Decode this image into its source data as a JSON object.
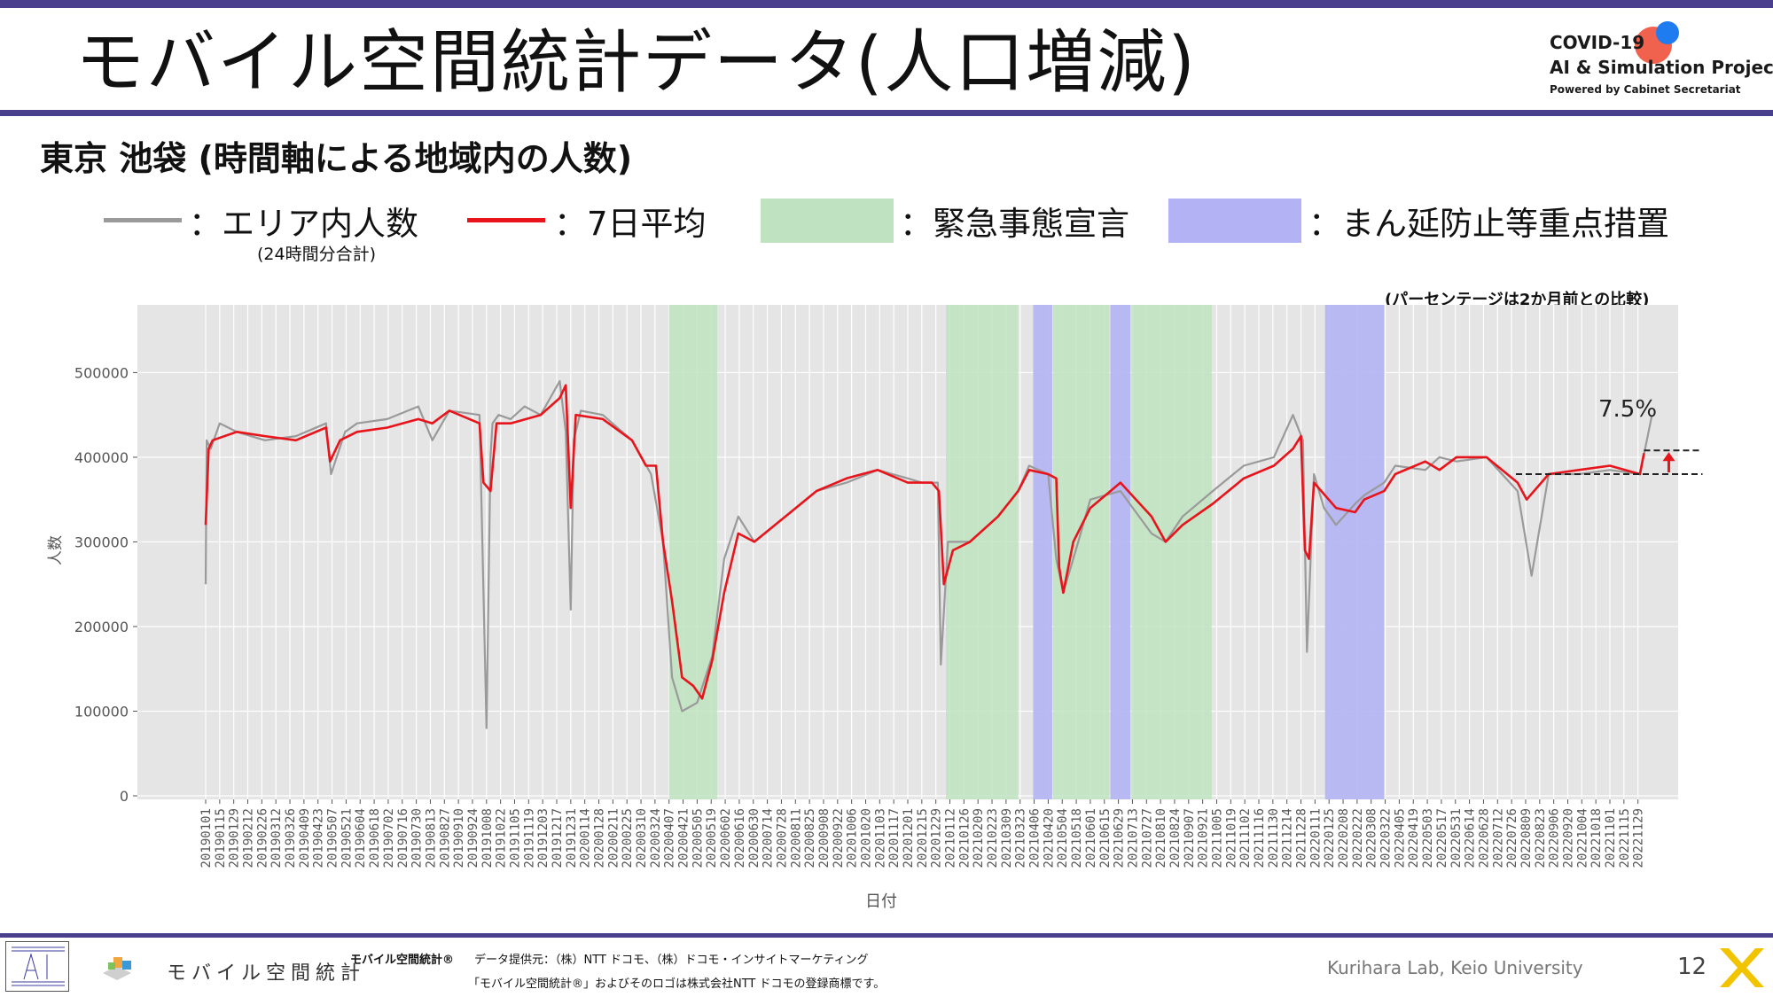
{
  "slide": {
    "title": "モバイル空間統計データ(人口増減)",
    "subtitle": "東京 池袋 (時間軸による地域内の人数)",
    "page_number": "12",
    "credit": "Kurihara Lab, Keio University"
  },
  "logo": {
    "line1": "COVID-19",
    "line2": "AI & Simulation Project",
    "line3": "Powered by Cabinet Secretariat"
  },
  "legend": {
    "area_count": "：エリア内人数",
    "area_count_sub": "(24時間分合計)",
    "avg7": "：7日平均",
    "emergency": "：緊急事態宣言",
    "priority": "：まん延防止等重点措置"
  },
  "note": "(パーセンテージは2か月前との比較)",
  "footer": {
    "brand": "モバイル空間統計",
    "brand_reg": "モバイル空間統計®",
    "provider": "データ提供元：（株）NTT ドコモ、（株）ドコモ・インサイトマーケティング",
    "trademark": "「モバイル空間統計®」およびそのロゴは株式会社NTT ドコモの登録商標です。"
  },
  "colors": {
    "accent": "#4a3f8c",
    "avg_line": "#e8141b",
    "daily_line": "#9a9a9a",
    "emergency": "#bfe3c0",
    "priority": "#b2b2f4",
    "plot_bg": "#e5e5e5"
  },
  "chart_data": {
    "type": "line",
    "xlabel": "日付",
    "ylabel": "人数",
    "ylim": [
      0,
      580000
    ],
    "yticks": [
      0,
      100000,
      200000,
      300000,
      400000,
      500000
    ],
    "ytick_labels": [
      "0",
      "100000",
      "200000",
      "300000",
      "400000",
      "500000"
    ],
    "x_start": "20190101",
    "x_end": "20221213",
    "xtick_labels": [
      "20190101",
      "20190115",
      "20190129",
      "20190212",
      "20190226",
      "20190312",
      "20190326",
      "20190409",
      "20190423",
      "20190507",
      "20190521",
      "20190604",
      "20190618",
      "20190702",
      "20190716",
      "20190730",
      "20190813",
      "20190827",
      "20190910",
      "20190924",
      "20191008",
      "20191022",
      "20191105",
      "20191119",
      "20191203",
      "20191217",
      "20191231",
      "20200114",
      "20200128",
      "20200211",
      "20200225",
      "20200310",
      "20200324",
      "20200407",
      "20200421",
      "20200505",
      "20200519",
      "20200602",
      "20200616",
      "20200630",
      "20200714",
      "20200728",
      "20200811",
      "20200825",
      "20200908",
      "20200922",
      "20201006",
      "20201020",
      "20201103",
      "20201117",
      "20201201",
      "20201215",
      "20201229",
      "20210112",
      "20210126",
      "20210209",
      "20210223",
      "20210309",
      "20210323",
      "20210406",
      "20210420",
      "20210504",
      "20210518",
      "20210601",
      "20210615",
      "20210629",
      "20210713",
      "20210727",
      "20210810",
      "20210824",
      "20210907",
      "20210921",
      "20211005",
      "20211019",
      "20211102",
      "20211116",
      "20211130",
      "20211214",
      "20211228",
      "20220111",
      "20220125",
      "20220208",
      "20220222",
      "20220308",
      "20220322",
      "20220405",
      "20220419",
      "20220503",
      "20220517",
      "20220531",
      "20220614",
      "20220628",
      "20220712",
      "20220726",
      "20220809",
      "20220823",
      "20220906",
      "20220920",
      "20221004",
      "20221018",
      "20221101",
      "20221115",
      "20221129"
    ],
    "emergency_periods": [
      [
        "20200407",
        "20200525"
      ],
      [
        "20210108",
        "20210321"
      ],
      [
        "20210425",
        "20210620"
      ],
      [
        "20210712",
        "20210930"
      ]
    ],
    "priority_periods": [
      [
        "20210405",
        "20210424"
      ],
      [
        "20210621",
        "20210711"
      ],
      [
        "20220121",
        "20220321"
      ]
    ],
    "series": [
      {
        "name": "エリア内人数",
        "style": "daily",
        "x": [
          "20190101",
          "20190102",
          "20190106",
          "20190115",
          "20190201",
          "20190301",
          "20190401",
          "20190501",
          "20190506",
          "20190520",
          "20190601",
          "20190701",
          "20190801",
          "20190815",
          "20190901",
          "20191001",
          "20191008",
          "20191012",
          "20191014",
          "20191020",
          "20191101",
          "20191115",
          "20191201",
          "20191220",
          "20191226",
          "20191231",
          "20200103",
          "20200110",
          "20200201",
          "20200301",
          "20200320",
          "20200401",
          "20200410",
          "20200420",
          "20200505",
          "20200520",
          "20200601",
          "20200615",
          "20200701",
          "20200801",
          "20200901",
          "20201001",
          "20201101",
          "20201201",
          "20201215",
          "20201231",
          "20210103",
          "20210110",
          "20210201",
          "20210301",
          "20210321",
          "20210401",
          "20210420",
          "20210428",
          "20210505",
          "20210520",
          "20210601",
          "20210701",
          "20210801",
          "20210815",
          "20210901",
          "20211001",
          "20211101",
          "20211201",
          "20211220",
          "20211230",
          "20220103",
          "20220110",
          "20220120",
          "20220201",
          "20220220",
          "20220301",
          "20220321",
          "20220401",
          "20220501",
          "20220515",
          "20220601",
          "20220701",
          "20220801",
          "20220815",
          "20220901",
          "20221001",
          "20221101",
          "20221201",
          "20221213"
        ],
        "values": [
          250000,
          420000,
          410000,
          440000,
          430000,
          420000,
          425000,
          440000,
          380000,
          430000,
          440000,
          445000,
          460000,
          420000,
          455000,
          450000,
          80000,
          400000,
          440000,
          450000,
          445000,
          460000,
          450000,
          490000,
          430000,
          220000,
          420000,
          455000,
          450000,
          420000,
          380000,
          300000,
          140000,
          100000,
          110000,
          165000,
          280000,
          330000,
          300000,
          330000,
          360000,
          370000,
          385000,
          375000,
          370000,
          370000,
          155000,
          300000,
          300000,
          330000,
          360000,
          390000,
          380000,
          280000,
          240000,
          300000,
          350000,
          360000,
          310000,
          300000,
          330000,
          360000,
          390000,
          400000,
          450000,
          420000,
          170000,
          380000,
          340000,
          320000,
          345000,
          355000,
          370000,
          390000,
          385000,
          400000,
          395000,
          400000,
          360000,
          260000,
          380000,
          380000,
          385000,
          380000,
          450000
        ]
      },
      {
        "name": "7日平均",
        "style": "avg",
        "x": [
          "20190101",
          "20190104",
          "20190108",
          "20190201",
          "20190301",
          "20190401",
          "20190501",
          "20190505",
          "20190515",
          "20190601",
          "20190701",
          "20190801",
          "20190815",
          "20190901",
          "20191001",
          "20191005",
          "20191012",
          "20191018",
          "20191101",
          "20191201",
          "20191220",
          "20191226",
          "20191231",
          "20200105",
          "20200201",
          "20200301",
          "20200315",
          "20200325",
          "20200401",
          "20200410",
          "20200420",
          "20200501",
          "20200510",
          "20200520",
          "20200601",
          "20200615",
          "20200701",
          "20200801",
          "20200901",
          "20201001",
          "20201101",
          "20201201",
          "20201225",
          "20210101",
          "20210106",
          "20210115",
          "20210201",
          "20210301",
          "20210321",
          "20210401",
          "20210420",
          "20210428",
          "20210501",
          "20210505",
          "20210515",
          "20210601",
          "20210701",
          "20210801",
          "20210815",
          "20210901",
          "20211001",
          "20211101",
          "20211201",
          "20211220",
          "20211228",
          "20220101",
          "20220105",
          "20220110",
          "20220201",
          "20220220",
          "20220301",
          "20220321",
          "20220401",
          "20220501",
          "20220515",
          "20220601",
          "20220701",
          "20220801",
          "20220810",
          "20220901",
          "20221001",
          "20221101",
          "20221201",
          "20221205"
        ],
        "values": [
          320000,
          410000,
          420000,
          430000,
          425000,
          420000,
          435000,
          395000,
          420000,
          430000,
          435000,
          445000,
          440000,
          455000,
          440000,
          370000,
          360000,
          440000,
          440000,
          450000,
          470000,
          485000,
          340000,
          450000,
          445000,
          420000,
          390000,
          390000,
          300000,
          230000,
          140000,
          130000,
          115000,
          160000,
          240000,
          310000,
          300000,
          330000,
          360000,
          375000,
          385000,
          370000,
          370000,
          360000,
          250000,
          290000,
          300000,
          330000,
          360000,
          385000,
          380000,
          375000,
          270000,
          240000,
          300000,
          340000,
          370000,
          330000,
          300000,
          320000,
          345000,
          375000,
          390000,
          410000,
          425000,
          290000,
          280000,
          370000,
          340000,
          335000,
          350000,
          360000,
          380000,
          395000,
          385000,
          400000,
          400000,
          370000,
          350000,
          380000,
          385000,
          390000,
          380000,
          405000
        ]
      }
    ],
    "annotation": {
      "text": "7.5%",
      "from_value": 380000,
      "to_value": 408000
    }
  }
}
